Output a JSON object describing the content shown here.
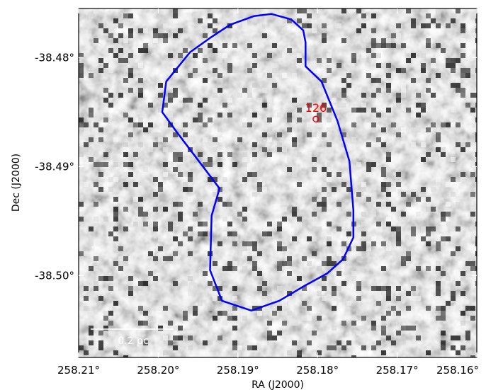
{
  "chart_data": {
    "type": "image",
    "xlabel": "RA (J2000)",
    "ylabel": "Dec (J2000)",
    "xlim": [
      258.21,
      258.16
    ],
    "ylim": [
      -38.5075,
      -38.4755
    ],
    "x_ticks": [
      {
        "value": 258.21,
        "label": "258.21°"
      },
      {
        "value": 258.2,
        "label": "258.20°"
      },
      {
        "value": 258.19,
        "label": "258.19°"
      },
      {
        "value": 258.18,
        "label": "258.18°"
      },
      {
        "value": 258.17,
        "label": "258.17°"
      },
      {
        "value": 258.16,
        "label": "258.16°"
      }
    ],
    "y_ticks": [
      {
        "value": -38.48,
        "label": "-38.48°"
      },
      {
        "value": -38.49,
        "label": "-38.49°"
      },
      {
        "value": -38.5,
        "label": "-38.50°"
      }
    ],
    "colormap": "grayscale",
    "contour": {
      "color": "#0000ff",
      "points": [
        [
          258.1858,
          -38.476
        ],
        [
          258.1833,
          -38.4765
        ],
        [
          258.1818,
          -38.4775
        ],
        [
          258.1815,
          -38.4786
        ],
        [
          258.1815,
          -38.4808
        ],
        [
          258.1795,
          -38.4822
        ],
        [
          258.1775,
          -38.4858
        ],
        [
          258.176,
          -38.4895
        ],
        [
          258.1755,
          -38.494
        ],
        [
          258.1755,
          -38.4965
        ],
        [
          258.1768,
          -38.4985
        ],
        [
          258.1788,
          -38.4998
        ],
        [
          258.1818,
          -38.501
        ],
        [
          258.1848,
          -38.5023
        ],
        [
          258.1883,
          -38.5032
        ],
        [
          258.192,
          -38.5023
        ],
        [
          258.1935,
          -38.4995
        ],
        [
          258.1933,
          -38.4945
        ],
        [
          258.1923,
          -38.492
        ],
        [
          258.1975,
          -38.487
        ],
        [
          258.1995,
          -38.485
        ],
        [
          258.199,
          -38.4822
        ],
        [
          258.196,
          -38.4795
        ],
        [
          258.1935,
          -38.4782
        ],
        [
          258.191,
          -38.477
        ],
        [
          258.188,
          -38.4762
        ]
      ]
    },
    "annotations": [
      {
        "label": "126",
        "ra": 258.1802,
        "dec": -38.4846,
        "color": "#ff0000",
        "marker": "circle"
      }
    ],
    "scalebar": {
      "label": "0.2 pc"
    }
  }
}
